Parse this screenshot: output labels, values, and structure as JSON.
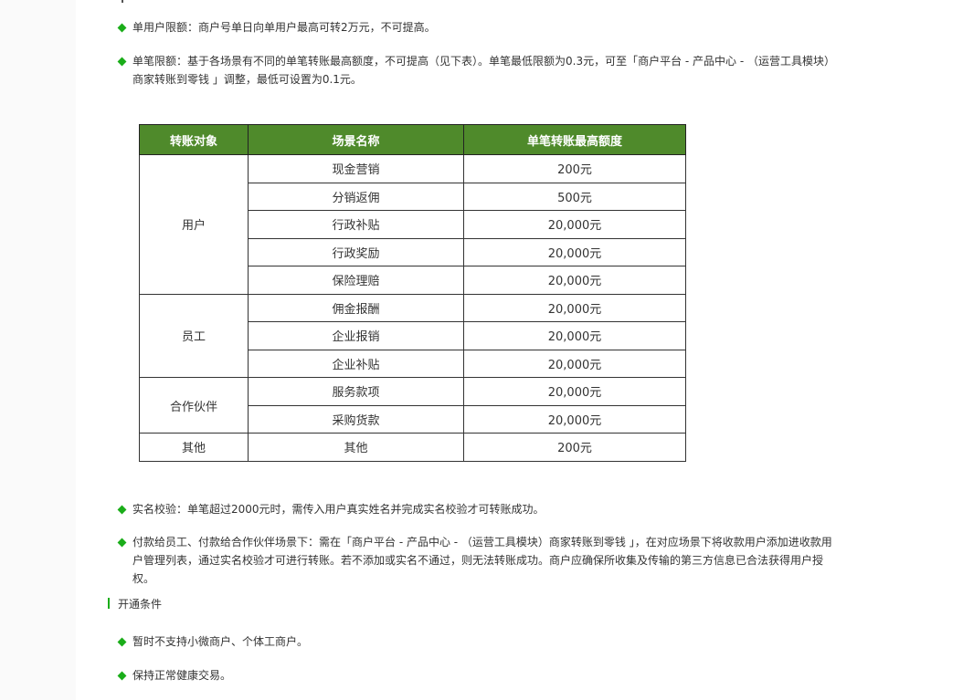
{
  "bullets_top": [
    "单用户限额：商户号单日向单用户最高可转2万元，不可提高。",
    "单笔限额：基于各场景有不同的单笔转账最高额度，不可提高（见下表）。单笔最低限额为0.3元，可至「商户平台 - 产品中心 - （运营工具模块）商家转账到零钱 」调整，最低可设置为0.1元。"
  ],
  "table": {
    "headers": [
      "转账对象",
      "场景名称",
      "单笔转账最高额度"
    ],
    "groups": [
      {
        "target": "用户",
        "rows": [
          [
            "现金营销",
            "200元"
          ],
          [
            "分销返佣",
            "500元"
          ],
          [
            "行政补贴",
            "20,000元"
          ],
          [
            "行政奖励",
            "20,000元"
          ],
          [
            "保险理赔",
            "20,000元"
          ]
        ]
      },
      {
        "target": "员工",
        "rows": [
          [
            "佣金报酬",
            "20,000元"
          ],
          [
            "企业报销",
            "20,000元"
          ],
          [
            "企业补贴",
            "20,000元"
          ]
        ]
      },
      {
        "target": "合作伙伴",
        "rows": [
          [
            "服务款项",
            "20,000元"
          ],
          [
            "采购货款",
            "20,000元"
          ]
        ]
      },
      {
        "target": "其他",
        "rows": [
          [
            "其他",
            "200元"
          ]
        ]
      }
    ]
  },
  "bullets_mid": [
    "实名校验：单笔超过2000元时，需传入用户真实姓名并完成实名校验才可转账成功。",
    "付款给员工、付款给合作伙伴场景下：需在「商户平台 - 产品中心 - （运营工具模块）商家转账到零钱 」，在对应场景下将收款用户添加进收款用户管理列表，通过实名校验才可进行转账。若不添加或实名不通过，则无法转账成功。商户应确保所收集及传输的第三方信息已合法获得用户授权。"
  ],
  "section_heading": "开通条件",
  "bullets_bottom": [
    "暂时不支持小微商户、个体工商户。",
    "保持正常健康交易。"
  ],
  "colors": {
    "accent": "#1aad19",
    "table_header": "#4f8a2b"
  }
}
